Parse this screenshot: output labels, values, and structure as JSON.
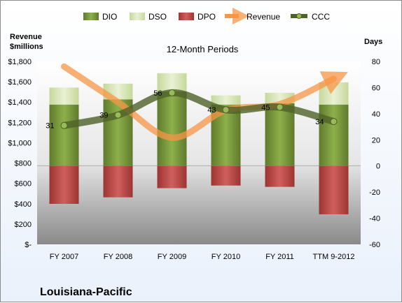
{
  "chart_data": {
    "type": "bar",
    "title": "12-Month Periods",
    "company": "Louisiana-Pacific",
    "left_axis": {
      "label_line1": "Revenue",
      "label_line2": "$millions",
      "range": [
        0,
        1800
      ],
      "ticks": [
        "$-",
        "$200",
        "$400",
        "$600",
        "$800",
        "$1,000",
        "$1,200",
        "$1,400",
        "$1,600",
        "$1,800"
      ]
    },
    "right_axis": {
      "label": "Days",
      "range": [
        -60,
        80
      ],
      "ticks": [
        "-60",
        "-40",
        "-20",
        "0",
        "20",
        "40",
        "60",
        "80"
      ]
    },
    "categories": [
      "FY 2007",
      "FY 2008",
      "FY 2009",
      "FY 2010",
      "FY 2011",
      "TTM 9-2012"
    ],
    "series": [
      {
        "name": "DIO",
        "axis": "right",
        "color": "#76933c",
        "values": [
          47,
          51,
          57,
          47,
          48,
          47
        ]
      },
      {
        "name": "DSO",
        "axis": "right",
        "color": "#d7e4bd",
        "values": [
          13,
          12,
          14,
          7,
          8,
          17
        ]
      },
      {
        "name": "DPO",
        "axis": "right",
        "color": "#c0504d",
        "values": [
          -29,
          -24,
          -17,
          -15,
          -16,
          -37
        ]
      },
      {
        "name": "Revenue",
        "axis": "left",
        "color": "#f79646",
        "values": [
          1750,
          1400,
          1050,
          1320,
          1380,
          1630
        ]
      },
      {
        "name": "CCC",
        "axis": "right",
        "color": "#4f6228",
        "values": [
          31,
          39,
          56,
          43,
          45,
          34
        ]
      }
    ],
    "data_labels": [
      "31",
      "39",
      "56",
      "43",
      "45",
      "34"
    ],
    "legend_position": "top",
    "grid": false
  }
}
